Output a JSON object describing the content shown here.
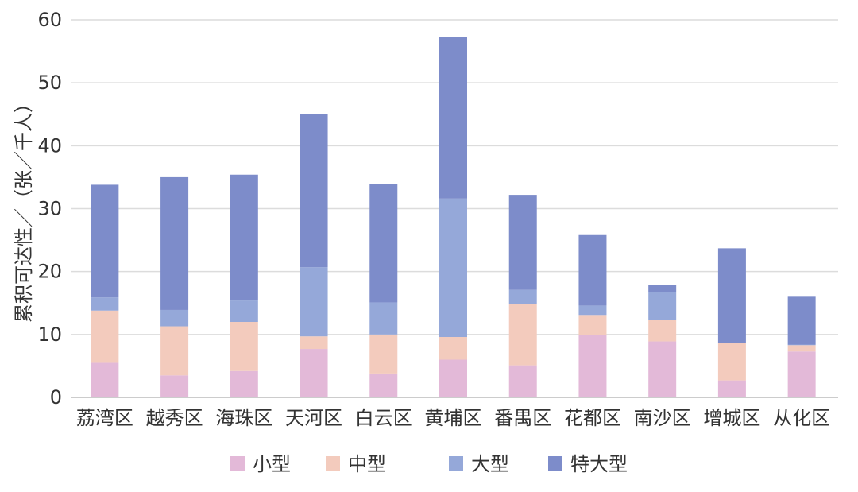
{
  "chart_data": {
    "type": "bar",
    "stacked": true,
    "title": "",
    "xlabel": "",
    "ylabel": "累积可达性／（张／千人）",
    "ylim": [
      0,
      60
    ],
    "yticks": [
      0,
      10,
      20,
      30,
      40,
      50,
      60
    ],
    "grid": true,
    "legend_position": "bottom",
    "categories": [
      "荔湾区",
      "越秀区",
      "海珠区",
      "天河区",
      "白云区",
      "黄埔区",
      "番禺区",
      "花都区",
      "南沙区",
      "增城区",
      "从化区"
    ],
    "series": [
      {
        "name": "小型",
        "color": "#e3b9d8",
        "values": [
          5.5,
          3.5,
          4.2,
          7.7,
          3.8,
          6.0,
          5.1,
          9.9,
          8.9,
          2.7,
          7.3
        ]
      },
      {
        "name": "中型",
        "color": "#f3cbbd",
        "values": [
          8.3,
          7.8,
          7.8,
          2.0,
          6.2,
          3.6,
          9.8,
          3.2,
          3.4,
          5.9,
          1.0
        ]
      },
      {
        "name": "大型",
        "color": "#95a8d9",
        "values": [
          2.1,
          2.6,
          3.4,
          11.0,
          5.1,
          22.0,
          2.2,
          1.5,
          4.4,
          0.0,
          0.1
        ]
      },
      {
        "name": "特大型",
        "color": "#7d8cca",
        "values": [
          17.9,
          21.1,
          20.0,
          24.3,
          18.8,
          25.7,
          15.1,
          11.2,
          1.2,
          15.1,
          7.6
        ]
      }
    ]
  }
}
